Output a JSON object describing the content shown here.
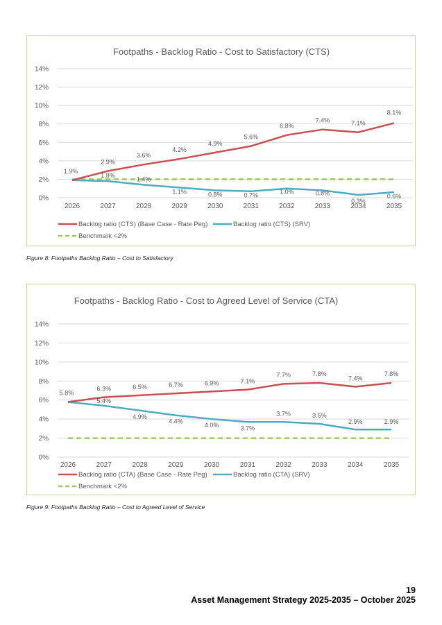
{
  "page": {
    "page_number": "19",
    "document_title": "Asset Management Strategy 2025-2035 – October 2025"
  },
  "figures": [
    {
      "caption": "Figure 8: Footpaths Backlog Ratio – Cost to Satisfactory"
    },
    {
      "caption": "Figure 9: Footpaths Backlog Ratio – Cost to Agreed Level of Service"
    }
  ],
  "colors": {
    "base_case": "#c9504f",
    "srv": "#4bacc6",
    "benchmark": "#9bc95a",
    "grid": "#d9d9d9",
    "frame": "#c3dc9b"
  },
  "chart_data": [
    {
      "type": "line",
      "title": "Footpaths - Backlog Ratio - Cost to Satisfactory (CTS)",
      "xlabel": "",
      "ylabel": "",
      "categories": [
        "2026",
        "2027",
        "2028",
        "2029",
        "2030",
        "2031",
        "2032",
        "2033",
        "2034",
        "2035"
      ],
      "yticks": [
        "0%",
        "2%",
        "4%",
        "6%",
        "8%",
        "10%",
        "12%",
        "14%"
      ],
      "ylim": [
        0,
        14
      ],
      "grid": true,
      "legend_position": "bottom",
      "series": [
        {
          "name": "Backlog ratio (CTS) (Base Case - Rate Peg)",
          "key": "base_case",
          "style": "solid",
          "values": [
            1.9,
            2.9,
            3.6,
            4.2,
            4.9,
            5.6,
            6.8,
            7.4,
            7.1,
            8.1
          ],
          "labels": [
            "1.9%",
            "2.9%",
            "3.6%",
            "4.2%",
            "4.9%",
            "5.6%",
            "6.8%",
            "7.4%",
            "7.1%",
            "8.1%"
          ]
        },
        {
          "name": "Backlog ratio (CTS) (SRV)",
          "key": "srv",
          "style": "solid",
          "values": [
            1.9,
            1.8,
            1.4,
            1.1,
            0.8,
            0.7,
            1.0,
            0.8,
            0.3,
            0.6
          ],
          "labels": [
            "",
            "1.8%",
            "1.4%",
            "1.1%",
            "0.8%",
            "0.7%",
            "1.0%",
            "0.8%",
            "0.3%",
            "0.6%"
          ]
        },
        {
          "name": "Benchmark <2%",
          "key": "benchmark",
          "style": "dashed",
          "values": [
            2,
            2,
            2,
            2,
            2,
            2,
            2,
            2,
            2,
            2
          ],
          "labels": []
        }
      ]
    },
    {
      "type": "line",
      "title": "Footpaths - Backlog Ratio - Cost to Agreed Level of Service (CTA)",
      "xlabel": "",
      "ylabel": "",
      "categories": [
        "2026",
        "2027",
        "2028",
        "2029",
        "2030",
        "2031",
        "2032",
        "2033",
        "2034",
        "2035"
      ],
      "yticks": [
        "0%",
        "2%",
        "4%",
        "6%",
        "8%",
        "10%",
        "12%",
        "14%"
      ],
      "ylim": [
        0,
        14
      ],
      "grid": true,
      "legend_position": "bottom",
      "series": [
        {
          "name": "Backlog ratio (CTA) (Base Case - Rate Peg)",
          "key": "base_case",
          "style": "solid",
          "values": [
            5.8,
            6.3,
            6.5,
            6.7,
            6.9,
            7.1,
            7.7,
            7.8,
            7.4,
            7.8
          ],
          "labels": [
            "5.8%",
            "6.3%",
            "6.5%",
            "6.7%",
            "6.9%",
            "7.1%",
            "7.7%",
            "7.8%",
            "7.4%",
            "7.8%"
          ]
        },
        {
          "name": "Backlog ratio (CTA) (SRV)",
          "key": "srv",
          "style": "solid",
          "values": [
            5.8,
            5.4,
            4.9,
            4.4,
            4.0,
            3.7,
            3.7,
            3.5,
            2.9,
            2.9
          ],
          "labels": [
            "",
            "5.4%",
            "4.9%",
            "4.4%",
            "4.0%",
            "3.7%",
            "3.7%",
            "3.5%",
            "2.9%",
            "2.9%"
          ]
        },
        {
          "name": "Benchmark <2%",
          "key": "benchmark",
          "style": "dashed",
          "values": [
            2,
            2,
            2,
            2,
            2,
            2,
            2,
            2,
            2,
            2
          ],
          "labels": []
        }
      ]
    }
  ]
}
